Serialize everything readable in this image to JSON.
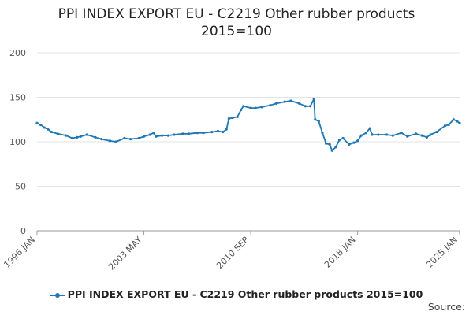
{
  "chart_data": {
    "type": "line",
    "title_line1": "PPI INDEX EXPORT EU - C2219 Other rubber products",
    "title_line2": "2015=100",
    "xlabel": "",
    "ylabel": "",
    "ylim": [
      0,
      200
    ],
    "yticks": [
      "0",
      "50",
      "100",
      "150",
      "200"
    ],
    "xticks": [
      "1996 JAN",
      "2003 MAY",
      "2010 SEP",
      "2018 JAN",
      "2025 JAN"
    ],
    "xlim": [
      "1996-01",
      "2025-01"
    ],
    "grid": true,
    "legend_position": "bottom",
    "source_label": "Source:",
    "colors": {
      "series": "#1f77b4"
    },
    "series": [
      {
        "name": "PPI INDEX EXPORT EU - C2219 Other rubber products 2015=100",
        "points": [
          [
            "1996-01",
            121
          ],
          [
            "1996-04",
            119
          ],
          [
            "1996-07",
            116
          ],
          [
            "1996-10",
            114
          ],
          [
            "1997-01",
            111
          ],
          [
            "1997-06",
            109
          ],
          [
            "1998-01",
            107
          ],
          [
            "1998-06",
            104
          ],
          [
            "1998-10",
            105
          ],
          [
            "1999-01",
            106
          ],
          [
            "1999-06",
            108
          ],
          [
            "2000-01",
            105
          ],
          [
            "2000-06",
            103
          ],
          [
            "2001-01",
            101
          ],
          [
            "2001-06",
            100
          ],
          [
            "2002-01",
            104
          ],
          [
            "2002-06",
            103
          ],
          [
            "2003-01",
            104
          ],
          [
            "2003-05",
            106
          ],
          [
            "2003-10",
            108
          ],
          [
            "2004-01",
            110
          ],
          [
            "2004-03",
            106
          ],
          [
            "2004-08",
            107
          ],
          [
            "2005-01",
            107
          ],
          [
            "2005-06",
            108
          ],
          [
            "2006-01",
            109
          ],
          [
            "2006-06",
            109
          ],
          [
            "2007-01",
            110
          ],
          [
            "2007-06",
            110
          ],
          [
            "2008-01",
            111
          ],
          [
            "2008-06",
            112
          ],
          [
            "2008-10",
            111
          ],
          [
            "2009-01",
            114
          ],
          [
            "2009-03",
            126
          ],
          [
            "2009-06",
            127
          ],
          [
            "2009-10",
            128
          ],
          [
            "2010-01",
            136
          ],
          [
            "2010-03",
            140
          ],
          [
            "2010-09",
            138
          ],
          [
            "2011-01",
            138
          ],
          [
            "2011-06",
            139
          ],
          [
            "2012-01",
            141
          ],
          [
            "2012-06",
            143
          ],
          [
            "2013-01",
            145
          ],
          [
            "2013-06",
            146
          ],
          [
            "2014-01",
            143
          ],
          [
            "2014-06",
            140
          ],
          [
            "2014-10",
            140
          ],
          [
            "2015-01",
            148
          ],
          [
            "2015-02",
            125
          ],
          [
            "2015-05",
            123
          ],
          [
            "2015-08",
            110
          ],
          [
            "2015-11",
            98
          ],
          [
            "2016-02",
            97
          ],
          [
            "2016-04",
            90
          ],
          [
            "2016-07",
            94
          ],
          [
            "2016-10",
            102
          ],
          [
            "2017-01",
            104
          ],
          [
            "2017-06",
            97
          ],
          [
            "2017-10",
            99
          ],
          [
            "2018-01",
            101
          ],
          [
            "2018-04",
            107
          ],
          [
            "2018-08",
            110
          ],
          [
            "2018-11",
            115
          ],
          [
            "2019-01",
            108
          ],
          [
            "2019-06",
            108
          ],
          [
            "2020-01",
            108
          ],
          [
            "2020-06",
            107
          ],
          [
            "2021-01",
            110
          ],
          [
            "2021-06",
            106
          ],
          [
            "2022-01",
            109
          ],
          [
            "2022-06",
            107
          ],
          [
            "2022-10",
            105
          ],
          [
            "2023-01",
            108
          ],
          [
            "2023-06",
            111
          ],
          [
            "2024-01",
            118
          ],
          [
            "2024-04",
            119
          ],
          [
            "2024-08",
            125
          ],
          [
            "2024-11",
            123
          ],
          [
            "2025-01",
            121
          ]
        ]
      }
    ]
  }
}
